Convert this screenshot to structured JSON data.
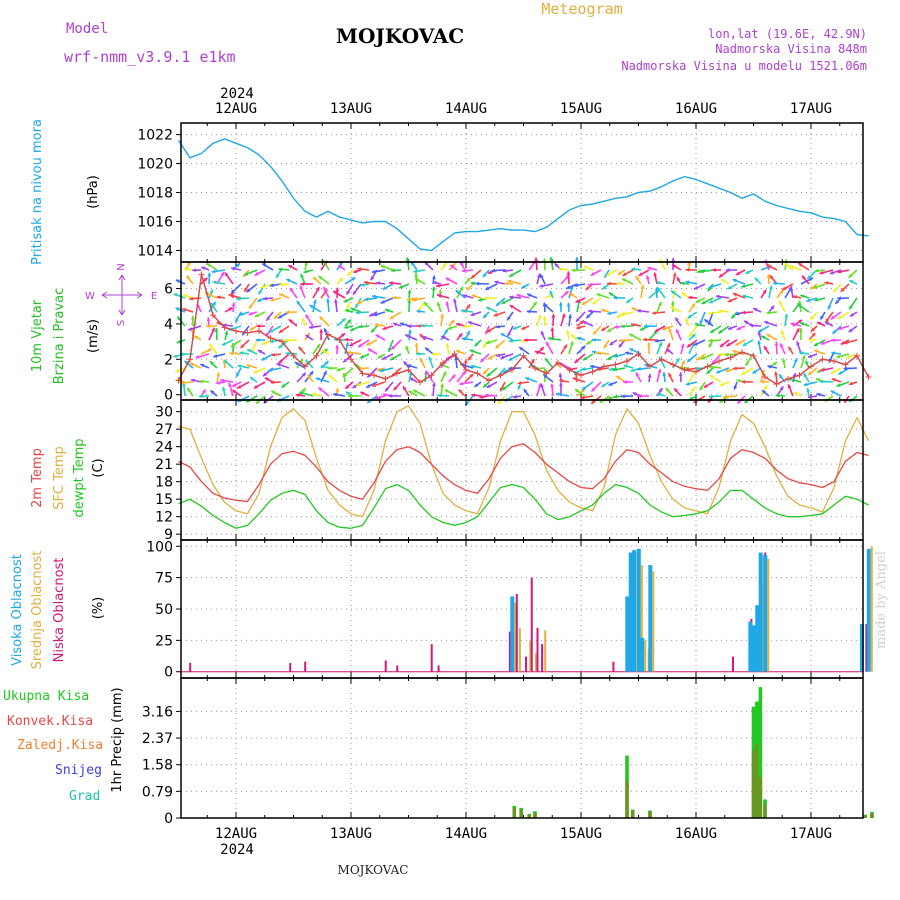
{
  "header": {
    "model_label": "Model",
    "model_name": "wrf-nmm_v3.9.1  e1km",
    "station": "MOJKOVAC",
    "meteogram": "Meteogram",
    "lonlat": "lon,lat (19.6E, 42.9N)",
    "elev": "Nadmorska Visina 848m",
    "elev_model": "Nadmorska Visina u modelu 1521.06m",
    "credit": "made by Angel",
    "footer_station": "MOJKOVAC"
  },
  "time_axis": {
    "year": "2024",
    "day_labels": [
      "12AUG",
      "13AUG",
      "14AUG",
      "15AUG",
      "16AUG",
      "17AUG"
    ]
  },
  "colors": {
    "pressure": "#1ea8e8",
    "wind_label": "#22c022",
    "temp2m": "#e84848",
    "sfc_temp": "#e0b040",
    "dewpt": "#22c822",
    "high_cloud": "#1ea8e8",
    "mid_cloud": "#e0b040",
    "low_cloud": "#d01878",
    "total_precip": "#22c822",
    "conv_precip": "#e84848",
    "frozen_precip": "#f08030",
    "snow": "#4040e0",
    "hail": "#20c0b0",
    "compass": "#b040d0"
  },
  "chart_data": [
    {
      "type": "line",
      "panel": "pressure",
      "ylabel": "Pritisak na nivou mora",
      "unit": "(hPa)",
      "ylim": [
        1013.2,
        1022.8
      ],
      "yticks": [
        1014,
        1016,
        1018,
        1020,
        1022
      ],
      "x": [
        -0.5,
        -0.4,
        -0.3,
        -0.2,
        -0.1,
        0,
        0.1,
        0.2,
        0.3,
        0.4,
        0.5,
        0.6,
        0.7,
        0.8,
        0.9,
        1.0,
        1.1,
        1.2,
        1.3,
        1.4,
        1.5,
        1.6,
        1.7,
        1.8,
        1.9,
        2.0,
        2.1,
        2.2,
        2.3,
        2.4,
        2.5,
        2.6,
        2.7,
        2.8,
        2.9,
        3.0,
        3.1,
        3.2,
        3.3,
        3.4,
        3.5,
        3.6,
        3.7,
        3.8,
        3.9,
        4.0,
        4.1,
        4.2,
        4.3,
        4.4,
        4.5,
        4.6,
        4.7,
        4.8,
        4.9,
        5.0,
        5.1,
        5.2,
        5.3,
        5.4,
        5.5
      ],
      "series": [
        {
          "values": [
            1021.6,
            1020.4,
            1020.7,
            1021.4,
            1021.7,
            1021.4,
            1021.1,
            1020.6,
            1019.8,
            1018.8,
            1017.6,
            1016.7,
            1016.3,
            1016.7,
            1016.3,
            1016.1,
            1015.9,
            1016.0,
            1016.0,
            1015.5,
            1014.8,
            1014.1,
            1014.0,
            1014.6,
            1015.2,
            1015.3,
            1015.3,
            1015.4,
            1015.5,
            1015.4,
            1015.4,
            1015.3,
            1015.6,
            1016.2,
            1016.8,
            1017.1,
            1017.2,
            1017.4,
            1017.6,
            1017.7,
            1018.0,
            1018.1,
            1018.4,
            1018.8,
            1019.1,
            1018.9,
            1018.6,
            1018.3,
            1018.0,
            1017.6,
            1017.9,
            1017.4,
            1017.1,
            1016.9,
            1016.7,
            1016.6,
            1016.3,
            1016.2,
            1016.0,
            1015.1,
            1015.0
          ]
        }
      ]
    },
    {
      "type": "line",
      "panel": "wind",
      "ylabel1": "10m Vjetar",
      "ylabel2": "Brzina i Pravac",
      "unit": "(m/s)",
      "ylim": [
        -0.3,
        7.5
      ],
      "yticks": [
        0,
        2,
        4,
        6
      ],
      "compass": {
        "north": "N",
        "south": "S",
        "east": "E",
        "west": "W"
      },
      "x": [
        -0.5,
        -0.4,
        -0.3,
        -0.2,
        -0.1,
        0,
        0.1,
        0.2,
        0.3,
        0.4,
        0.5,
        0.6,
        0.7,
        0.8,
        0.9,
        1.0,
        1.1,
        1.2,
        1.3,
        1.4,
        1.5,
        1.6,
        1.7,
        1.8,
        1.9,
        2.0,
        2.1,
        2.2,
        2.3,
        2.4,
        2.5,
        2.6,
        2.7,
        2.8,
        2.9,
        3.0,
        3.1,
        3.2,
        3.3,
        3.4,
        3.5,
        3.6,
        3.7,
        3.8,
        3.9,
        4.0,
        4.1,
        4.2,
        4.3,
        4.4,
        4.5,
        4.6,
        4.7,
        4.8,
        4.9,
        5.0,
        5.1,
        5.2,
        5.3,
        5.4,
        5.5
      ],
      "series": [
        {
          "values": [
            0.8,
            2.0,
            6.8,
            4.5,
            3.8,
            3.6,
            3.5,
            3.6,
            3.2,
            3.0,
            2.2,
            1.6,
            2.2,
            3.4,
            3.1,
            2.0,
            1.2,
            1.1,
            0.9,
            1.2,
            1.4,
            0.7,
            1.1,
            1.8,
            2.3,
            1.4,
            1.2,
            0.8,
            1.1,
            1.4,
            2.2,
            1.5,
            1.2,
            1.8,
            1.4,
            1.1,
            1.3,
            1.6,
            1.7,
            1.9,
            2.3,
            1.6,
            2.0,
            1.7,
            1.4,
            1.3,
            1.6,
            1.9,
            2.1,
            2.4,
            2.2,
            1.0,
            0.6,
            0.9,
            1.1,
            1.6,
            2.0,
            1.9,
            1.7,
            2.2,
            1.0
          ]
        },
        {
          "values": [
            0.8,
            2.0,
            6.8,
            4.5,
            3.8,
            3.6,
            3.5,
            3.6,
            3.2,
            3.0,
            2.2,
            1.6,
            2.2,
            3.4,
            3.1,
            2.0,
            1.2,
            1.1,
            0.9,
            1.2,
            1.4,
            0.7,
            1.1,
            1.8,
            2.3,
            1.4,
            1.2,
            0.8,
            1.1,
            1.4,
            2.2,
            1.5,
            1.2,
            1.8,
            1.4,
            1.1,
            1.3,
            1.6,
            1.7,
            1.9,
            2.3,
            1.6,
            2.0,
            1.7,
            1.4,
            1.3,
            1.6,
            1.9,
            2.1,
            2.4,
            2.2,
            1.0,
            0.6,
            0.9,
            1.1,
            1.6,
            2.0,
            1.9,
            1.7,
            2.2,
            1.0
          ]
        }
      ]
    },
    {
      "type": "line",
      "panel": "temperature",
      "ylabel1": "2m Temp",
      "ylabel2": "SFC Temp",
      "ylabel3": "dewpt Temp",
      "unit": "(C)",
      "ylim": [
        8,
        32
      ],
      "yticks": [
        9,
        12,
        15,
        18,
        21,
        24,
        27,
        30
      ],
      "x": [
        -0.5,
        -0.4,
        -0.3,
        -0.2,
        -0.1,
        0,
        0.1,
        0.2,
        0.3,
        0.4,
        0.5,
        0.6,
        0.7,
        0.8,
        0.9,
        1.0,
        1.1,
        1.2,
        1.3,
        1.4,
        1.5,
        1.6,
        1.7,
        1.8,
        1.9,
        2.0,
        2.1,
        2.2,
        2.3,
        2.4,
        2.5,
        2.6,
        2.7,
        2.8,
        2.9,
        3.0,
        3.1,
        3.2,
        3.3,
        3.4,
        3.5,
        3.6,
        3.7,
        3.8,
        3.9,
        4.0,
        4.1,
        4.2,
        4.3,
        4.4,
        4.5,
        4.6,
        4.7,
        4.8,
        4.9,
        5.0,
        5.1,
        5.2,
        5.3,
        5.4,
        5.5
      ],
      "series": [
        {
          "values": [
            21.5,
            20.5,
            18.0,
            16.0,
            15.2,
            14.8,
            14.6,
            17.5,
            21.0,
            22.8,
            23.2,
            22.5,
            20.5,
            18.0,
            16.5,
            15.5,
            15.0,
            17.8,
            21.5,
            23.5,
            24.0,
            23.0,
            21.0,
            19.0,
            17.5,
            16.5,
            16.0,
            18.5,
            22.0,
            24.0,
            24.5,
            23.0,
            21.0,
            19.5,
            18.0,
            17.0,
            16.8,
            18.5,
            21.5,
            23.5,
            23.0,
            21.0,
            19.5,
            18.0,
            17.2,
            16.8,
            16.5,
            18.5,
            22.0,
            23.5,
            23.0,
            22.0,
            20.0,
            18.5,
            17.8,
            17.5,
            17.0,
            18.0,
            21.5,
            23.0,
            22.5
          ]
        },
        {
          "values": [
            27.5,
            27.0,
            22.0,
            17.5,
            14.5,
            13.0,
            12.5,
            16.0,
            24.0,
            29.0,
            30.5,
            28.5,
            22.0,
            16.5,
            14.0,
            12.5,
            12.0,
            16.5,
            25.0,
            30.0,
            31.0,
            28.0,
            21.0,
            16.0,
            14.0,
            13.0,
            12.5,
            17.0,
            25.0,
            30.0,
            30.0,
            26.0,
            20.0,
            16.5,
            14.5,
            13.5,
            13.0,
            17.0,
            26.0,
            30.5,
            28.0,
            22.5,
            18.0,
            15.0,
            13.5,
            13.0,
            12.5,
            17.0,
            25.0,
            29.5,
            28.0,
            24.0,
            19.0,
            15.5,
            14.0,
            13.5,
            12.8,
            17.0,
            25.0,
            29.0,
            25.0
          ]
        },
        {
          "values": [
            14.2,
            15.0,
            13.8,
            12.2,
            11.0,
            10.0,
            10.5,
            12.5,
            14.8,
            16.0,
            16.5,
            15.8,
            13.0,
            11.0,
            10.2,
            10.0,
            10.5,
            13.5,
            16.8,
            17.5,
            16.5,
            14.0,
            12.0,
            11.0,
            10.5,
            11.0,
            12.0,
            14.5,
            17.0,
            17.5,
            17.0,
            15.0,
            12.5,
            11.5,
            12.0,
            13.0,
            14.0,
            16.0,
            17.5,
            17.0,
            16.0,
            14.0,
            12.8,
            12.0,
            12.2,
            12.5,
            13.0,
            14.5,
            16.5,
            16.5,
            15.0,
            13.5,
            12.5,
            12.0,
            12.0,
            12.2,
            12.5,
            14.0,
            15.5,
            15.0,
            14.0
          ]
        }
      ]
    },
    {
      "type": "bar",
      "panel": "cloud",
      "ylabel1": "Visoka Oblacnost",
      "ylabel2": "Srednja Oblacnost",
      "ylabel3": "Niska Oblacnost",
      "unit": "(%)",
      "ylim": [
        -5,
        105
      ],
      "yticks": [
        0,
        25,
        50,
        75,
        100
      ],
      "x": [
        -0.42,
        0.45,
        0.58,
        1.28,
        1.38,
        1.68,
        1.74,
        2.36,
        2.42,
        2.46,
        2.5,
        2.55,
        2.6,
        2.64,
        2.68,
        2.72,
        3.26,
        3.42,
        3.45,
        3.48,
        3.52,
        3.55,
        3.58,
        3.62,
        3.68,
        4.3,
        4.46,
        4.49,
        4.52,
        4.55,
        4.58,
        4.62,
        4.66,
        5.46,
        5.49,
        5.52,
        5.56
      ],
      "series": [
        {
          "name": "high",
          "values": [
            0,
            0,
            0,
            0,
            0,
            0,
            0,
            0,
            60,
            0,
            0,
            0,
            0,
            0,
            0,
            0,
            0,
            60,
            95,
            97,
            98,
            27,
            0,
            85,
            0,
            0,
            0,
            40,
            37,
            53,
            95,
            93,
            0,
            38,
            0,
            98,
            0
          ]
        },
        {
          "name": "mid",
          "values": [
            0,
            0,
            0,
            0,
            0,
            0,
            0,
            0,
            55,
            35,
            0,
            25,
            15,
            0,
            33,
            0,
            0,
            72,
            90,
            95,
            85,
            25,
            18,
            80,
            0,
            0,
            35,
            30,
            42,
            55,
            92,
            90,
            0,
            0,
            40,
            100,
            0
          ]
        },
        {
          "name": "low",
          "values": [
            7,
            7,
            8,
            9,
            5,
            22,
            5,
            32,
            62,
            0,
            12,
            75,
            35,
            22,
            0,
            0,
            8,
            65,
            0,
            0,
            0,
            0,
            14,
            0,
            0,
            12,
            42,
            35,
            0,
            70,
            95,
            0,
            0,
            38,
            0,
            0,
            0
          ]
        }
      ]
    },
    {
      "type": "bar",
      "panel": "precipitation",
      "legend": [
        "Ukupna Kisa",
        "Konvek.Kisa",
        "Zaledj.Kisa",
        "Snijeg",
        "Grad"
      ],
      "ylabel": "1hr Precip (mm)",
      "ylim": [
        0,
        4.15
      ],
      "yticks": [
        0,
        0.79,
        1.58,
        2.37,
        3.16
      ],
      "x": [
        2.42,
        2.48,
        2.55,
        2.6,
        3.4,
        3.45,
        3.6,
        4.5,
        4.53,
        4.56,
        4.6,
        5.47,
        5.53
      ],
      "series": [
        {
          "name": "total",
          "values": [
            0.36,
            0.3,
            0.12,
            0.2,
            1.85,
            0.25,
            0.22,
            3.3,
            3.45,
            3.88,
            0.55,
            0.1,
            0.18
          ]
        },
        {
          "name": "convective",
          "values": [
            0.3,
            0.24,
            0.1,
            0.15,
            1.1,
            0.22,
            0.2,
            2.0,
            2.2,
            1.2,
            0.4,
            0.08,
            0.14
          ]
        }
      ]
    }
  ]
}
